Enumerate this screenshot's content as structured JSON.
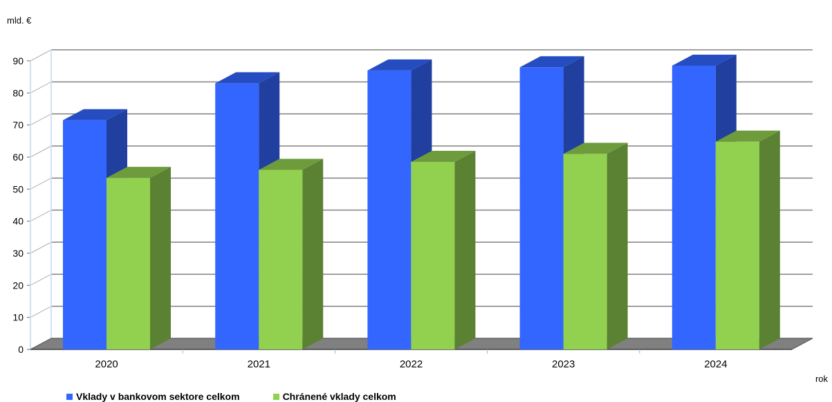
{
  "chart_data": {
    "type": "bar",
    "categories": [
      "2020",
      "2021",
      "2022",
      "2023",
      "2024"
    ],
    "series": [
      {
        "name": "Vklady v bankovom sektore celkom",
        "values": [
          71.5,
          83.0,
          87.0,
          88.0,
          88.5
        ],
        "color": "#3366ff"
      },
      {
        "name": "Chránené vklady celkom",
        "values": [
          53.5,
          56.0,
          58.5,
          61.0,
          64.8
        ],
        "color": "#92d050"
      }
    ],
    "ylabel": "mld. €",
    "xlabel": "rok",
    "ylim": [
      0,
      90
    ],
    "yticks": [
      "0",
      "10",
      "20",
      "30",
      "40",
      "50",
      "60",
      "70",
      "80",
      "90"
    ],
    "grid": true,
    "style": "3d-column",
    "legend": "bottom"
  }
}
